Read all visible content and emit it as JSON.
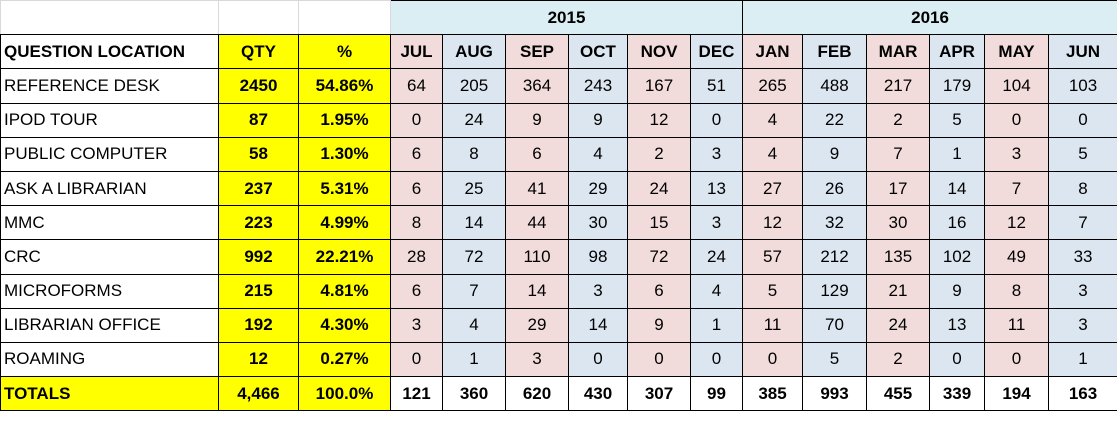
{
  "table": {
    "years": [
      "2015",
      "2016"
    ],
    "header": [
      "QUESTION  LOCATION",
      "QTY",
      "%",
      "JUL",
      "AUG",
      "SEP",
      "OCT",
      "NOV",
      "DEC",
      "JAN",
      "FEB",
      "MAR",
      "APR",
      "MAY",
      "JUN"
    ],
    "rows": [
      [
        "REFERENCE DESK",
        2450,
        "54.86%",
        64,
        205,
        364,
        243,
        167,
        51,
        265,
        488,
        217,
        179,
        104,
        103
      ],
      [
        "IPOD TOUR",
        87,
        "1.95%",
        0,
        24,
        9,
        9,
        12,
        0,
        4,
        22,
        2,
        5,
        0,
        0
      ],
      [
        "PUBLIC COMPUTER",
        58,
        "1.30%",
        6,
        8,
        6,
        4,
        2,
        3,
        4,
        9,
        7,
        1,
        3,
        5
      ],
      [
        "ASK A LIBRARIAN",
        237,
        "5.31%",
        6,
        25,
        41,
        29,
        24,
        13,
        27,
        26,
        17,
        14,
        7,
        8
      ],
      [
        "MMC",
        223,
        "4.99%",
        8,
        14,
        44,
        30,
        15,
        3,
        12,
        32,
        30,
        16,
        12,
        7
      ],
      [
        "CRC",
        992,
        "22.21%",
        28,
        72,
        110,
        98,
        72,
        24,
        57,
        212,
        135,
        102,
        49,
        33
      ],
      [
        "MICROFORMS",
        215,
        "4.81%",
        6,
        7,
        14,
        3,
        6,
        4,
        5,
        129,
        21,
        9,
        8,
        3
      ],
      [
        "LIBRARIAN OFFICE",
        192,
        "4.30%",
        3,
        4,
        29,
        14,
        9,
        1,
        11,
        70,
        24,
        13,
        11,
        3
      ],
      [
        "ROAMING",
        12,
        "0.27%",
        0,
        1,
        3,
        0,
        0,
        0,
        0,
        5,
        2,
        0,
        0,
        1
      ]
    ],
    "totals": [
      "TOTALS",
      "4,466",
      "100.0%",
      121,
      360,
      620,
      430,
      307,
      99,
      385,
      993,
      455,
      339,
      194,
      163
    ]
  }
}
